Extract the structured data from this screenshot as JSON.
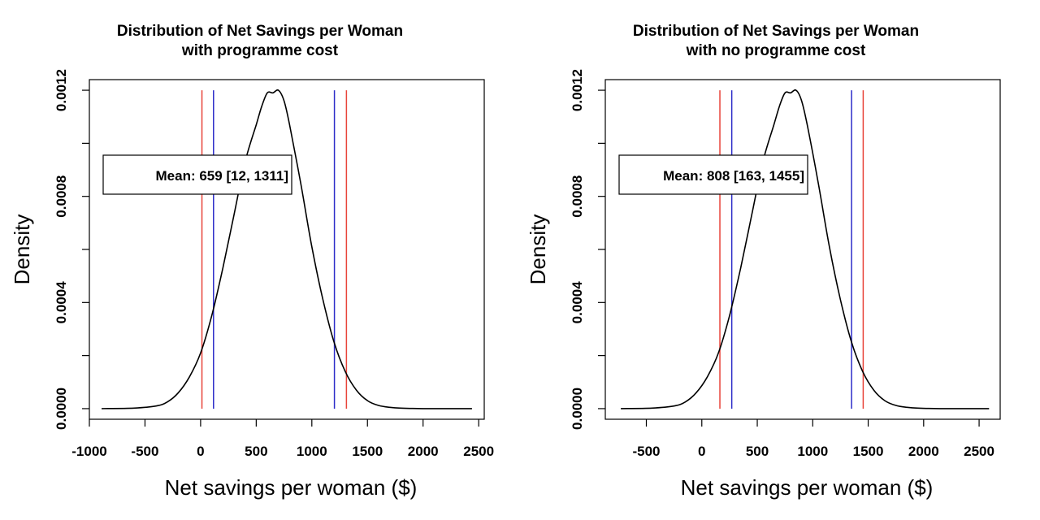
{
  "colors": {
    "curve": "#000000",
    "ci_95": "#e8443a",
    "ci_90": "#2b2bc8",
    "axis": "#000000"
  },
  "chart_data": [
    {
      "type": "line",
      "title": "Distribution of Net Savings per Woman",
      "subtitle": "with programme cost",
      "xlabel": "Net savings per woman ($)",
      "ylabel": "Density",
      "xlim": [
        -1000,
        2550
      ],
      "ylim": [
        -4e-05,
        0.00124
      ],
      "xticks": [
        -1000,
        -500,
        0,
        500,
        1000,
        1500,
        2000,
        2500
      ],
      "yticks": [
        0.0,
        0.0002,
        0.0004,
        0.0006,
        0.0008,
        0.001,
        0.0012
      ],
      "ytick_labels": [
        "0.0000",
        "",
        "0.0004",
        "",
        "0.0008",
        "",
        "0.0012"
      ],
      "annotation": "Mean: 659 [12, 1311]",
      "vlines": [
        {
          "x": 12,
          "color": "red"
        },
        {
          "x": 116,
          "color": "blue"
        },
        {
          "x": 1203,
          "color": "blue"
        },
        {
          "x": 1311,
          "color": "red"
        }
      ],
      "series": [
        {
          "x": [
            -890,
            -600,
            -400,
            -300,
            -200,
            -100,
            0,
            100,
            200,
            300,
            400,
            500,
            550,
            600,
            650,
            700,
            750,
            800,
            900,
            1000,
            1100,
            1200,
            1300,
            1400,
            1500,
            1600,
            1700,
            1800,
            2000,
            2200,
            2440
          ],
          "values": [
            0.0,
            2e-06,
            1e-05,
            2.5e-05,
            6e-05,
            0.00012,
            0.00021,
            0.00035,
            0.00053,
            0.00073,
            0.00093,
            0.00107,
            0.00114,
            0.00119,
            0.00119,
            0.0012,
            0.00116,
            0.00107,
            0.00085,
            0.00061,
            0.00041,
            0.00025,
            0.00014,
            7e-05,
            3e-05,
            1.2e-05,
            5e-06,
            2e-06,
            0.0,
            0.0,
            0.0
          ]
        }
      ]
    },
    {
      "type": "line",
      "title": "Distribution of Net Savings per Woman",
      "subtitle": "with no programme cost",
      "xlabel": "Net savings per woman ($)",
      "ylabel": "Density",
      "xlim": [
        -870,
        2690
      ],
      "ylim": [
        -4e-05,
        0.00124
      ],
      "xticks": [
        -500,
        0,
        500,
        1000,
        1500,
        2000,
        2500
      ],
      "yticks": [
        0.0,
        0.0002,
        0.0004,
        0.0006,
        0.0008,
        0.001,
        0.0012
      ],
      "ytick_labels": [
        "0.0000",
        "",
        "0.0004",
        "",
        "0.0008",
        "",
        "0.0012"
      ],
      "annotation": "Mean: 808 [163, 1455]",
      "vlines": [
        {
          "x": 163,
          "color": "red"
        },
        {
          "x": 270,
          "color": "blue"
        },
        {
          "x": 1350,
          "color": "blue"
        },
        {
          "x": 1455,
          "color": "red"
        }
      ],
      "series": [
        {
          "x": [
            -730,
            -450,
            -250,
            -150,
            -50,
            50,
            150,
            250,
            350,
            450,
            550,
            650,
            700,
            750,
            800,
            850,
            900,
            950,
            1050,
            1150,
            1250,
            1350,
            1450,
            1550,
            1650,
            1750,
            1850,
            1950,
            2150,
            2350,
            2590
          ],
          "values": [
            0.0,
            2e-06,
            1e-05,
            2.5e-05,
            6e-05,
            0.00012,
            0.00021,
            0.00035,
            0.00053,
            0.00073,
            0.00093,
            0.00107,
            0.00114,
            0.00119,
            0.00119,
            0.0012,
            0.00116,
            0.00107,
            0.00085,
            0.00061,
            0.00041,
            0.00025,
            0.00014,
            7e-05,
            3e-05,
            1.2e-05,
            5e-06,
            2e-06,
            0.0,
            0.0,
            0.0
          ]
        }
      ]
    }
  ]
}
